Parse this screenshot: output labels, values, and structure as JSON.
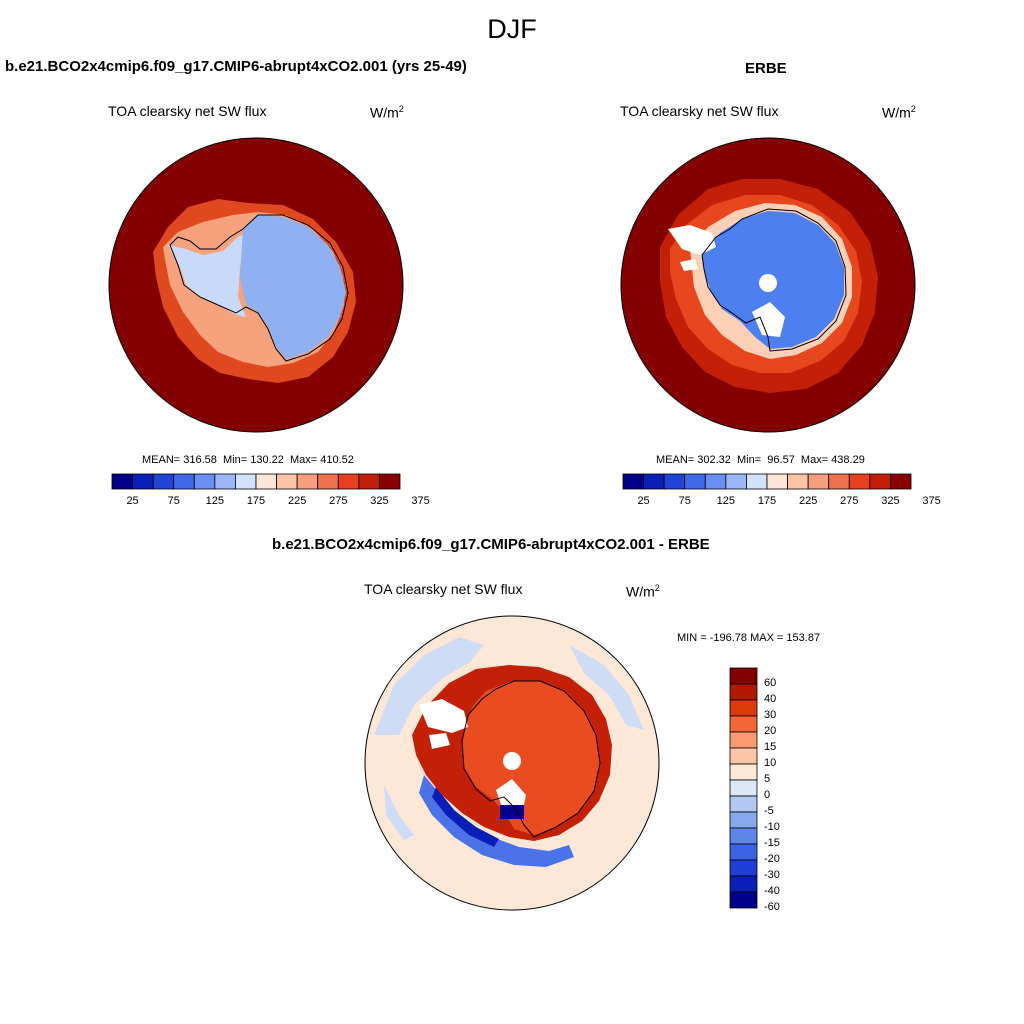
{
  "figure": {
    "title": "DJF"
  },
  "panels": {
    "model": {
      "title": "b.e21.BCO2x4cmip6.f09_g17.CMIP6-abrupt4xCO2.001 (yrs 25-49)",
      "subtitle": "TOA clearsky net SW flux",
      "units_base": "W/m",
      "units_exp": "2",
      "stats": "MEAN= 316.58  Min= 130.22  Max= 410.52",
      "ocean_color": "#840000"
    },
    "obs": {
      "title": "ERBE",
      "subtitle": "TOA clearsky net SW flux",
      "units_base": "W/m",
      "units_exp": "2",
      "stats": "MEAN= 302.32  Min=  96.57  Max= 438.29",
      "ocean_color": "#840000"
    },
    "diff": {
      "title": "b.e21.BCO2x4cmip6.f09_g17.CMIP6-abrupt4xCO2.001 - ERBE",
      "subtitle": "TOA clearsky net SW flux",
      "units_base": "W/m",
      "units_exp": "2",
      "stats": "MIN = -196.78 MAX = 153.87"
    }
  },
  "colorbar_abs": {
    "colors": [
      "#00008a",
      "#0a1fb8",
      "#1f44d6",
      "#3f68ea",
      "#6a8ff2",
      "#9db8f8",
      "#d3e2fb",
      "#fde6d6",
      "#fbc4a7",
      "#f79f7c",
      "#f07150",
      "#e8401e",
      "#c21f08",
      "#8a0000"
    ],
    "tick_labels": [
      "25",
      "75",
      "125",
      "175",
      "225",
      "275",
      "325",
      "375"
    ]
  },
  "colorbar_diff": {
    "colors": [
      "#840000",
      "#b01800",
      "#dc3a0a",
      "#f2663a",
      "#f89a72",
      "#fcc6a6",
      "#fde8d8",
      "#dde8f7",
      "#b2c8f2",
      "#86a8ee",
      "#5e86ea",
      "#3c63e6",
      "#1f3fd6",
      "#0a1fb8",
      "#00008a"
    ],
    "tick_labels": [
      "60",
      "40",
      "30",
      "20",
      "15",
      "10",
      "5",
      "0",
      "-5",
      "-10",
      "-15",
      "-20",
      "-30",
      "-40",
      "-60"
    ]
  }
}
